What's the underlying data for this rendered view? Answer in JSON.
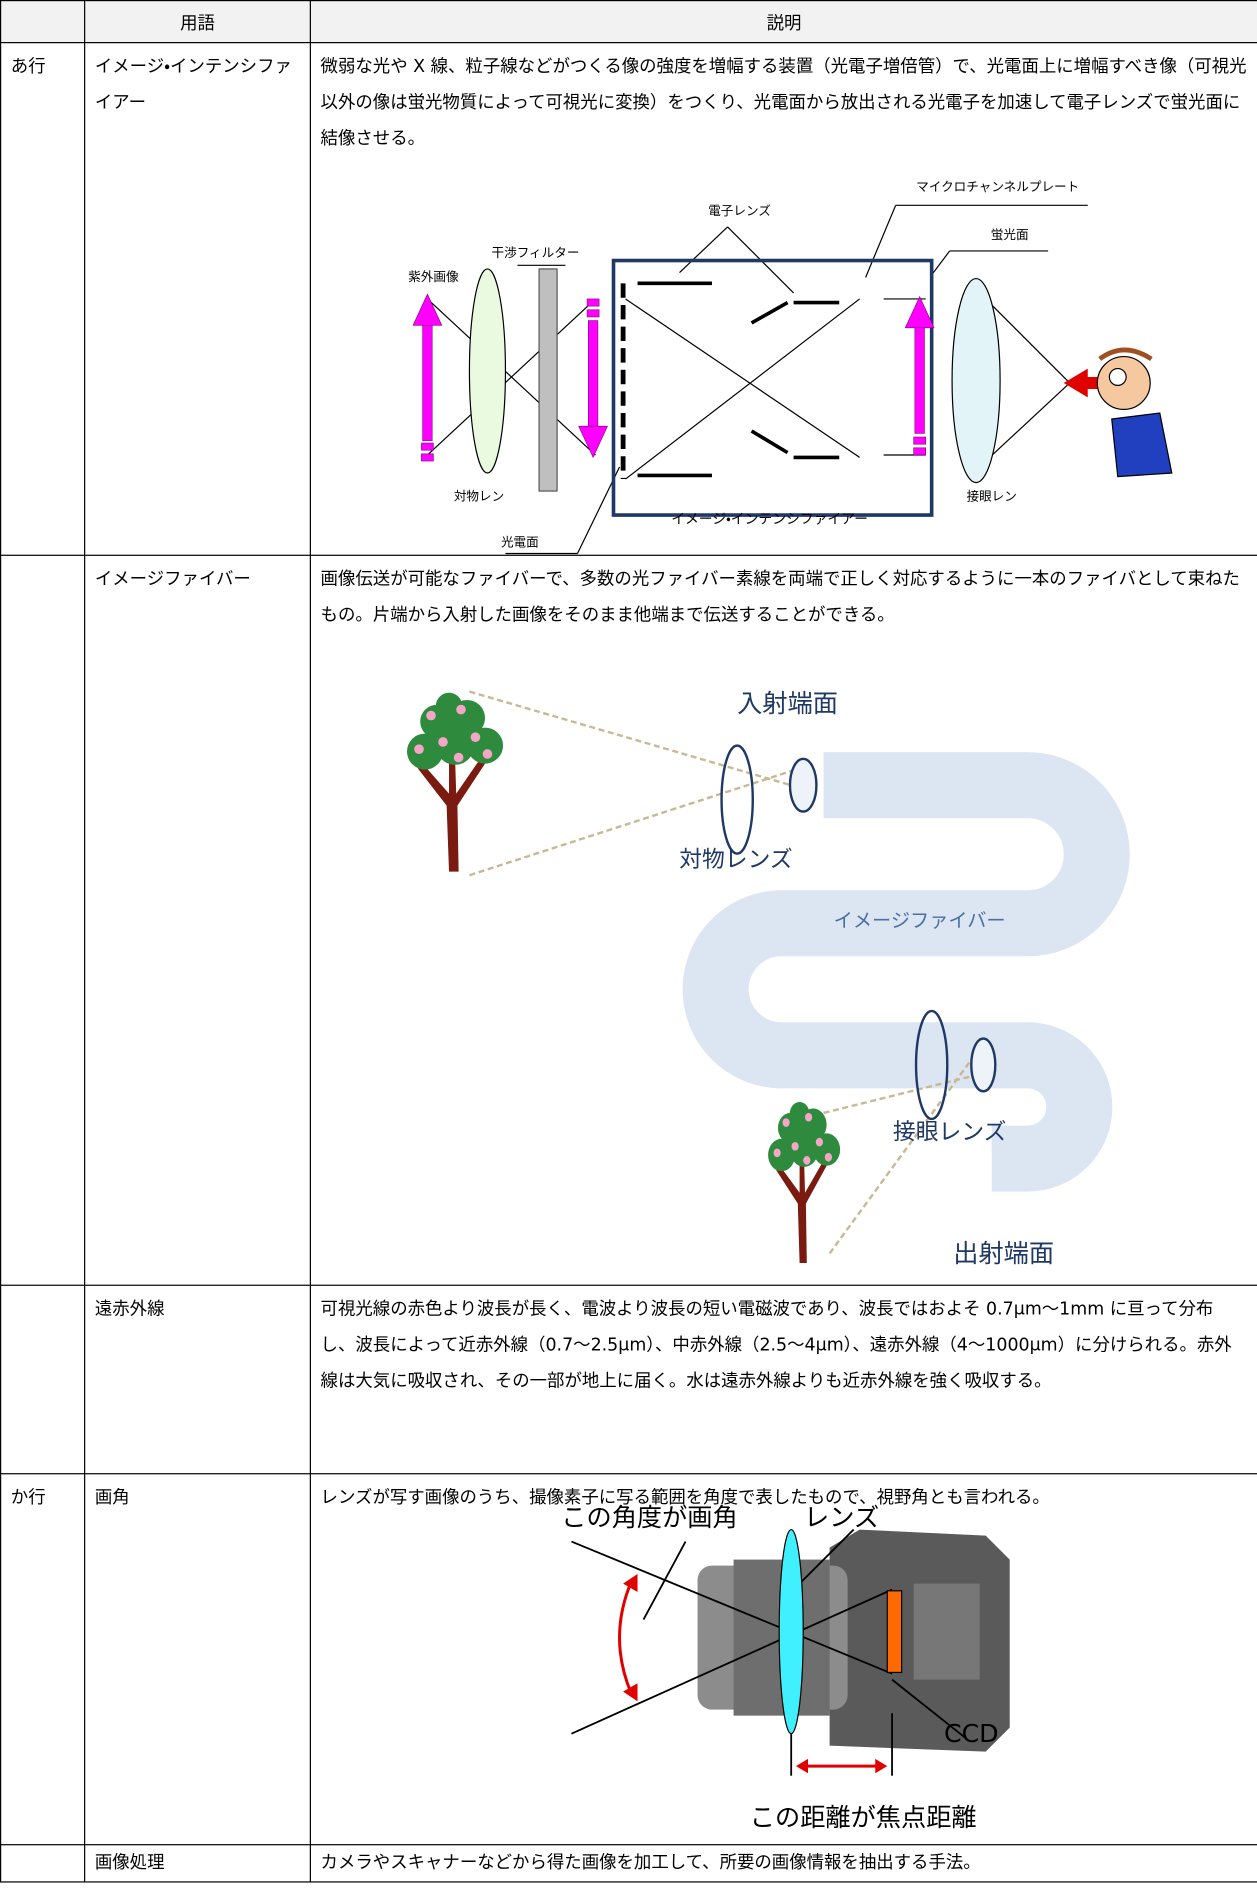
{
  "table": {
    "headers": {
      "term": "用語",
      "description": "説明"
    },
    "rows": [
      {
        "group": "あ行",
        "term": "イメージ・インテンシファイアー",
        "description": "微弱な光や X 線、粒子線などがつくる像の強度を増幅する装置（光電子増倍管）で、光電面上に増幅すべき像（可視光以外の像は蛍光物質によって可視光に変換）をつくり、光電面から放出される光電子を加速して電子レンズで蛍光面に結像させる。",
        "figure": {
          "labels": [
            "電子レンズ",
            "マイクロチャンネルプレート",
            "蛍光面",
            "干渉フィルター",
            "紫外画像",
            "対物レン",
            "接眼レン",
            "光電面",
            "イメージ・インテンシファイアー"
          ]
        }
      },
      {
        "term": "イメージファイバー",
        "description": "画像伝送が可能なファイバーで、多数の光ファイバー素線を両端で正しく対応するように一本のファイバとして束ねたもの。片端から入射した画像をそのまま他端まで伝送することができる。",
        "figure": {
          "labels": [
            "入射端面",
            "対物レンズ",
            "イメージファイバー",
            "接眼レンズ",
            "出射端面"
          ]
        }
      },
      {
        "term": "遠赤外線",
        "description": "可視光線の赤色より波長が長く、電波より波長の短い電磁波であり、波長ではおよそ 0.7μm～1mm に亘って分布し、波長によって近赤外線（0.7～2.5μm）、中赤外線（2.5～4μm）、遠赤外線（4～1000μm）に分けられる。赤外線は大気に吸収され、その一部が地上に届く。水は遠赤外線よりも近赤外線を強く吸収する。"
      },
      {
        "group": "か行",
        "term": "画角",
        "description": "レンズが写す画像のうち、撮像素子に写る範囲を角度で表したもので、視野角とも言われる。",
        "figure": {
          "labels": [
            "この角度が画角",
            "レンズ",
            "CCD",
            "この距離が焦点距離"
          ]
        }
      },
      {
        "term": "画像処理",
        "description": "カメラやスキャナーなどから得た画像を加工して、所要の画像情報を抽出する手法。"
      }
    ]
  }
}
